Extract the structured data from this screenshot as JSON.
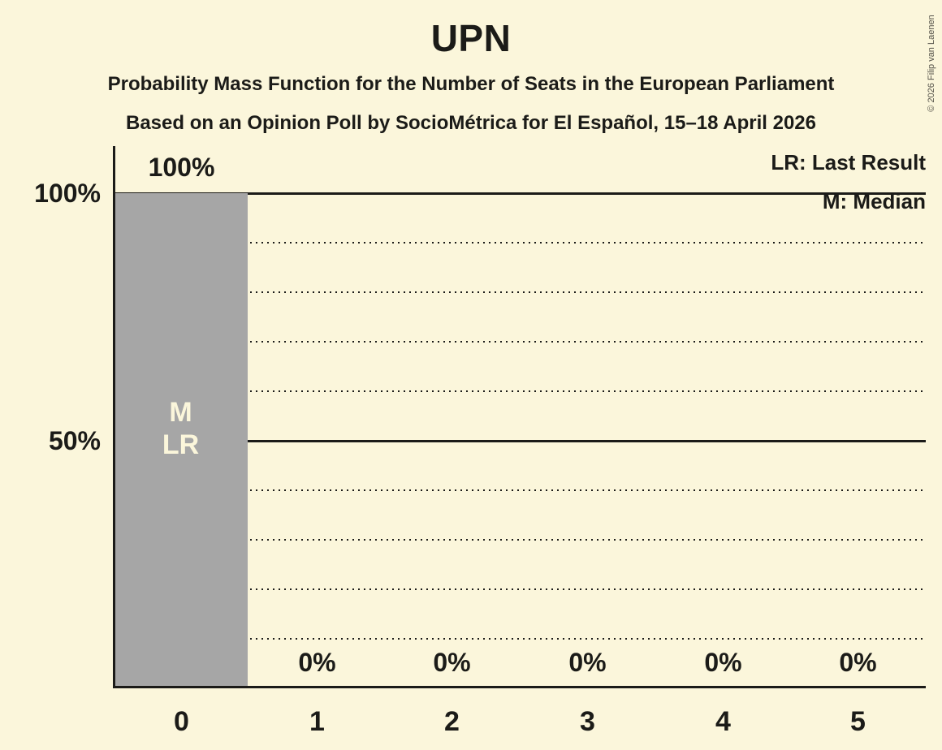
{
  "header": {
    "title": "UPN",
    "subtitle1": "Probability Mass Function for the Number of Seats in the European Parliament",
    "subtitle2": "Based on an Opinion Poll by SocioMétrica for El Español, 15–18 April 2026"
  },
  "legend": {
    "lr": "LR: Last Result",
    "m": "M: Median"
  },
  "copyright": "© 2026 Filip van Laenen",
  "colors": {
    "background": "#FBF6DB",
    "bar": "#A6A6A6",
    "ink": "#1B1B18",
    "bar_label": "#FBF6DB"
  },
  "chart_data": {
    "type": "bar",
    "title": "UPN",
    "categories": [
      "0",
      "1",
      "2",
      "3",
      "4",
      "5"
    ],
    "values": [
      100,
      0,
      0,
      0,
      0,
      0
    ],
    "value_labels": [
      "100%",
      "0%",
      "0%",
      "0%",
      "0%",
      "0%"
    ],
    "bar_annotations": [
      [
        "M",
        "LR"
      ],
      [],
      [],
      [],
      [],
      []
    ],
    "median_seats": "0",
    "last_result_seats": "0",
    "ylim": [
      0,
      100
    ],
    "y_ticks": [
      {
        "value": 100,
        "label": "100%"
      },
      {
        "value": 50,
        "label": "50%"
      }
    ],
    "gridlines": {
      "solid_at": [
        100,
        50
      ],
      "dotted_at": [
        90,
        80,
        70,
        60,
        40,
        30,
        20,
        10
      ]
    },
    "legend_position": "top-right",
    "grid": true
  }
}
